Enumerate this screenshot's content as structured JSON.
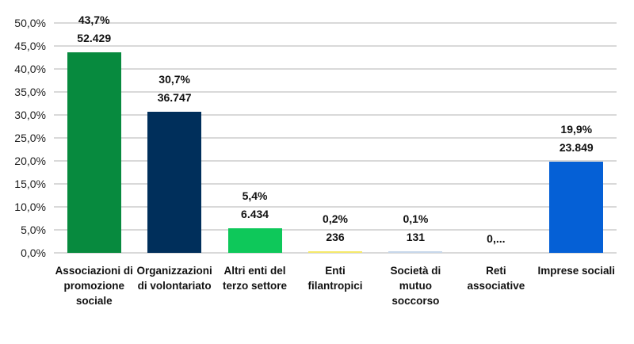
{
  "chart_data": {
    "type": "bar",
    "title": "",
    "xlabel": "",
    "ylabel": "",
    "ylim": [
      0,
      50
    ],
    "grid": true,
    "legend": null,
    "y_ticks": [
      "0,0%",
      "5,0%",
      "10,0%",
      "15,0%",
      "20,0%",
      "25,0%",
      "30,0%",
      "35,0%",
      "40,0%",
      "45,0%",
      "50,0%"
    ],
    "categories": [
      "Associazioni di promozione sociale",
      "Organizzazioni di volontariato",
      "Altri enti del terzo settore",
      "Enti filantropici",
      "Società di mutuo soccorso",
      "Reti associative",
      "Imprese sociali"
    ],
    "category_labels_display": [
      "Associazioni di\npromozione\nsociale",
      "Organizzazioni\ndi volontariato",
      "Altri enti del\nterzo settore",
      "Enti\nfilantropici",
      "Società di\nmutuo\nsoccorso",
      "Reti\nassociative",
      "Imprese sociali"
    ],
    "values": [
      43.7,
      30.7,
      5.4,
      0.2,
      0.1,
      0.0,
      19.9
    ],
    "counts": [
      52429,
      36747,
      6434,
      236,
      131,
      null,
      23849
    ],
    "data_labels": [
      {
        "pct": "43,7%",
        "count": "52.429"
      },
      {
        "pct": "30,7%",
        "count": "36.747"
      },
      {
        "pct": "5,4%",
        "count": "6.434"
      },
      {
        "pct": "0,2%",
        "count": "236"
      },
      {
        "pct": "0,1%",
        "count": "131"
      },
      {
        "pct": "",
        "count": "0,..."
      },
      {
        "pct": "19,9%",
        "count": "23.849"
      }
    ],
    "colors": [
      "#078a3e",
      "#002f5b",
      "#0ec85a",
      "#f5e96a",
      "#c7d7ea",
      "#d9d9d9",
      "#0560d6"
    ]
  }
}
